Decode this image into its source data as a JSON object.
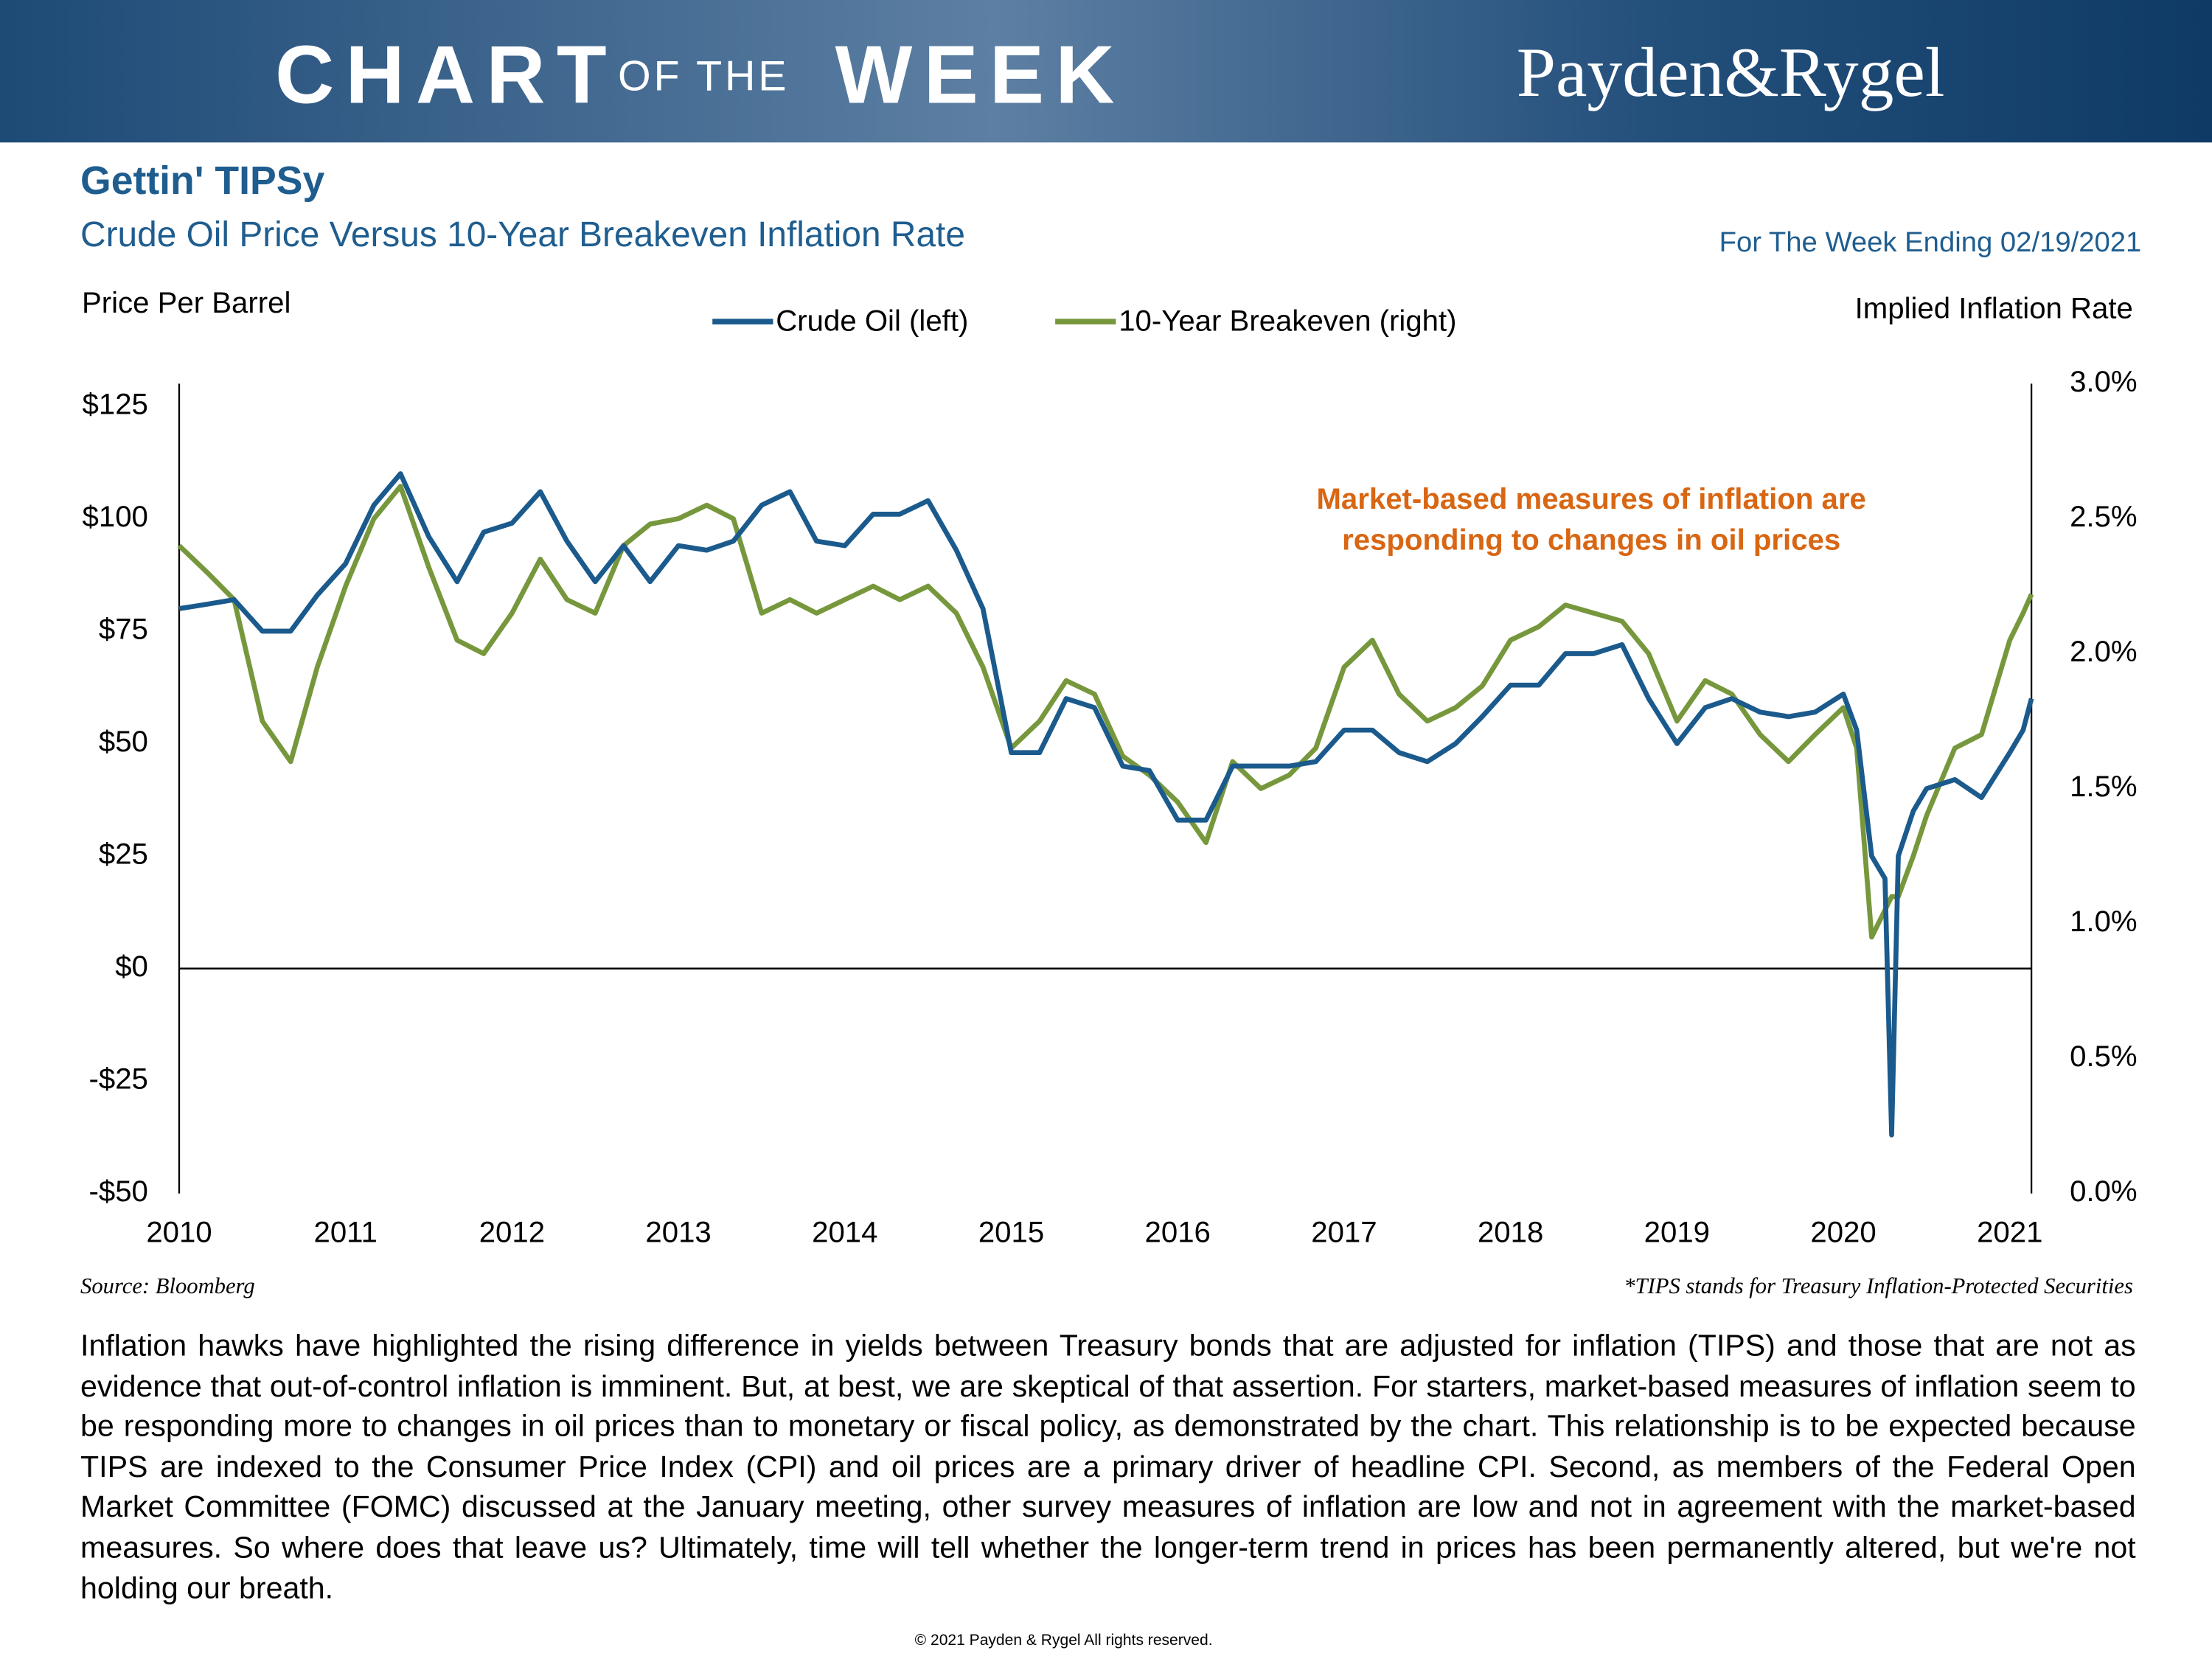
{
  "header": {
    "brand_1": "CHART",
    "brand_2": "OF THE",
    "brand_3": "WEEK",
    "logo": "Payden&Rygel"
  },
  "week_ending": "For The Week Ending 02/19/2021",
  "chart_data": {
    "type": "line",
    "title": "Gettin' TIPSy",
    "subtitle": "Crude Oil Price Versus 10-Year Breakeven Inflation Rate",
    "y_label": "Price Per Barrel",
    "y2_label": "Implied Inflation Rate",
    "annotation": [
      "Market-based measures of inflation are",
      "responding to changes in oil prices"
    ],
    "source": "Source: Bloomberg",
    "footnote": "*TIPS stands for Treasury Inflation-Protected Securities",
    "x": [
      2010.0,
      2010.17,
      2010.33,
      2010.5,
      2010.67,
      2010.83,
      2011.0,
      2011.17,
      2011.33,
      2011.5,
      2011.67,
      2011.83,
      2012.0,
      2012.17,
      2012.33,
      2012.5,
      2012.67,
      2012.83,
      2013.0,
      2013.17,
      2013.33,
      2013.5,
      2013.67,
      2013.83,
      2014.0,
      2014.17,
      2014.33,
      2014.5,
      2014.67,
      2014.83,
      2015.0,
      2015.17,
      2015.33,
      2015.5,
      2015.67,
      2015.83,
      2016.0,
      2016.17,
      2016.33,
      2016.5,
      2016.67,
      2016.83,
      2017.0,
      2017.17,
      2017.33,
      2017.5,
      2017.67,
      2017.83,
      2018.0,
      2018.17,
      2018.33,
      2018.5,
      2018.67,
      2018.83,
      2019.0,
      2019.17,
      2019.33,
      2019.5,
      2019.67,
      2019.83,
      2020.0,
      2020.08,
      2020.17,
      2020.25,
      2020.29,
      2020.33,
      2020.42,
      2020.5,
      2020.67,
      2020.83,
      2021.0,
      2021.08,
      2021.13
    ],
    "series": [
      {
        "name": "Crude Oil (left)",
        "color": "#1b5a8c",
        "axis": "y",
        "values": [
          80,
          81,
          82,
          75,
          75,
          83,
          90,
          103,
          110,
          96,
          86,
          97,
          99,
          106,
          95,
          86,
          94,
          86,
          94,
          93,
          95,
          103,
          106,
          95,
          94,
          101,
          101,
          104,
          93,
          80,
          48,
          48,
          60,
          58,
          45,
          44,
          33,
          33,
          45,
          45,
          45,
          46,
          53,
          53,
          48,
          46,
          50,
          56,
          63,
          63,
          70,
          70,
          72,
          60,
          50,
          58,
          60,
          57,
          56,
          57,
          61,
          53,
          25,
          20,
          -37,
          25,
          35,
          40,
          42,
          38,
          48,
          53,
          60
        ]
      },
      {
        "name": "10-Year Breakeven (right)",
        "color": "#77973d",
        "axis": "y2",
        "values": [
          2.4,
          2.3,
          2.2,
          1.75,
          1.6,
          1.95,
          2.25,
          2.5,
          2.62,
          2.32,
          2.05,
          2.0,
          2.15,
          2.35,
          2.2,
          2.15,
          2.4,
          2.48,
          2.5,
          2.55,
          2.5,
          2.15,
          2.2,
          2.15,
          2.2,
          2.25,
          2.2,
          2.25,
          2.15,
          1.95,
          1.65,
          1.75,
          1.9,
          1.85,
          1.62,
          1.55,
          1.45,
          1.3,
          1.6,
          1.5,
          1.55,
          1.65,
          1.95,
          2.05,
          1.85,
          1.75,
          1.8,
          1.88,
          2.05,
          2.1,
          2.18,
          2.15,
          2.12,
          2.0,
          1.75,
          1.9,
          1.85,
          1.7,
          1.6,
          1.7,
          1.8,
          1.65,
          0.95,
          1.05,
          1.1,
          1.1,
          1.25,
          1.4,
          1.65,
          1.7,
          2.05,
          2.15,
          2.22
        ]
      }
    ],
    "xlim": [
      2010,
      2021.13
    ],
    "xticks": [
      2010,
      2011,
      2012,
      2013,
      2014,
      2015,
      2016,
      2017,
      2018,
      2019,
      2020,
      2021
    ],
    "ylim": [
      -50,
      130
    ],
    "yticks": [
      {
        "value": -50,
        "label": "-$50"
      },
      {
        "value": -25,
        "label": "-$25"
      },
      {
        "value": 0,
        "label": "$0"
      },
      {
        "value": 25,
        "label": "$25"
      },
      {
        "value": 50,
        "label": "$50"
      },
      {
        "value": 75,
        "label": "$75"
      },
      {
        "value": 100,
        "label": "$100"
      },
      {
        "value": 125,
        "label": "$125"
      }
    ],
    "y2lim": [
      0,
      3
    ],
    "y2ticks": [
      {
        "value": 0,
        "label": "0.0%"
      },
      {
        "value": 0.5,
        "label": "0.5%"
      },
      {
        "value": 1,
        "label": "1.0%"
      },
      {
        "value": 1.5,
        "label": "1.5%"
      },
      {
        "value": 2,
        "label": "2.0%"
      },
      {
        "value": 2.5,
        "label": "2.5%"
      },
      {
        "value": 3,
        "label": "3.0%"
      }
    ]
  },
  "body": "Inflation hawks have highlighted the rising difference in yields between Treasury bonds that are adjusted for inflation (TIPS) and those that are not as evidence that out-of-control inflation is imminent. But, at best, we are skeptical of that assertion. For starters, market-based measures of inflation seem to be responding more to changes in oil prices than to monetary or fiscal policy, as demonstrated by the chart. This relationship is to be expected because TIPS are indexed to the Consumer Price Index (CPI) and oil prices are a primary driver of headline CPI. Second, as members of the Federal Open Market Committee (FOMC) discussed at the January meeting, other survey measures of inflation are low and not in agreement with the market-based measures. So where does that leave us? Ultimately, time will tell whether the longer-term trend in prices has been permanently altered, but we're not holding our breath.",
  "copyright": "© 2021 Payden & Rygel All rights reserved."
}
